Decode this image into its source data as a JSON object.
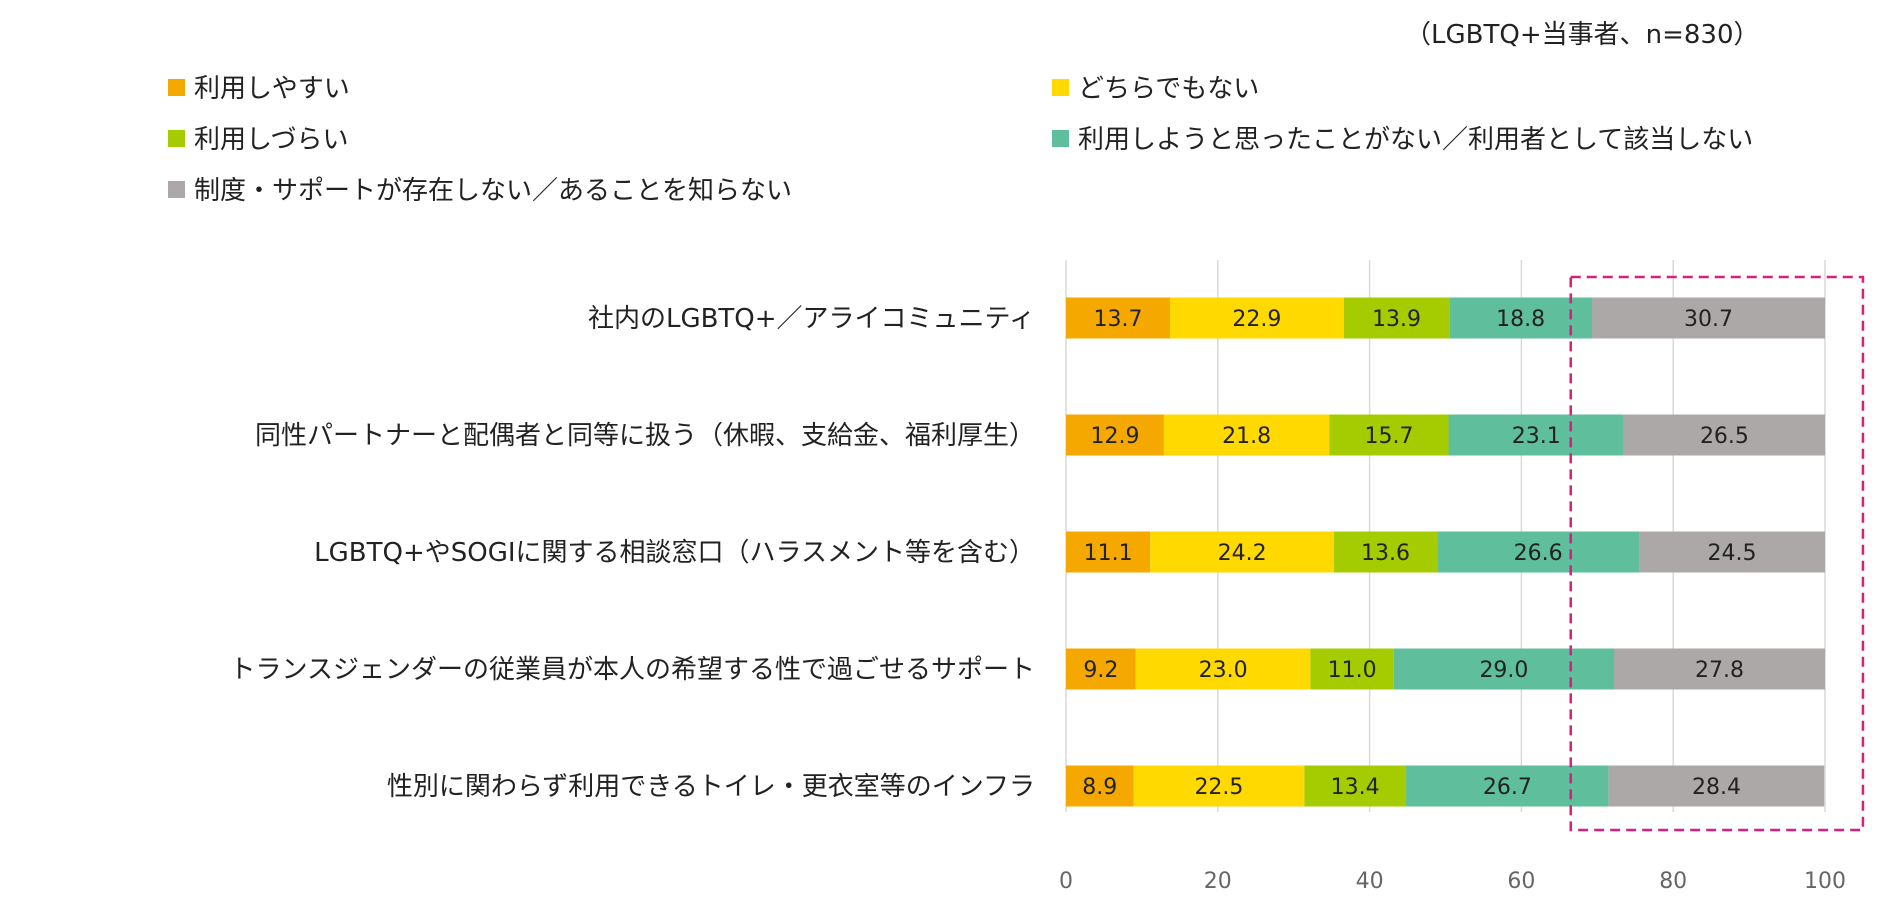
{
  "chart_data": {
    "type": "bar",
    "orientation": "horizontal-stacked",
    "note": "（LGBTQ+当事者、n=830）",
    "categories": [
      "社内のLGBTQ+／アライコミュニティ",
      "同性パートナーと配偶者と同等に扱う（休暇、支給金、福利厚生）",
      "LGBTQ+やSOGIに関する相談窓口（ハラスメント等を含む）",
      "トランスジェンダーの従業員が本人の希望する性で過ごせるサポート",
      "性別に関わらず利用できるトイレ・更衣室等のインフラ"
    ],
    "series": [
      {
        "name": "利用しやすい",
        "color": "#F5A800",
        "values": [
          13.7,
          12.9,
          11.1,
          9.2,
          8.9
        ]
      },
      {
        "name": "どちらでもない",
        "color": "#FFD900",
        "values": [
          22.9,
          21.8,
          24.2,
          23.0,
          22.5
        ]
      },
      {
        "name": "利用しづらい",
        "color": "#A5CC00",
        "values": [
          13.9,
          15.7,
          13.6,
          11.0,
          13.4
        ]
      },
      {
        "name": "利用しようと思ったことがない／利用者として該当しない",
        "color": "#5FBE9B",
        "values": [
          18.8,
          23.1,
          26.6,
          29.0,
          26.7
        ]
      },
      {
        "name": "制度・サポートが存在しない／あることを知らない",
        "color": "#ABA8A7",
        "values": [
          30.7,
          26.5,
          24.5,
          27.8,
          28.4
        ]
      }
    ],
    "value_labels": [
      [
        "13.7",
        "12.9",
        "11.1",
        "9.2",
        "8.9"
      ],
      [
        "22.9",
        "21.8",
        "24.2",
        "23.0",
        "22.5"
      ],
      [
        "13.9",
        "15.7",
        "13.6",
        "11.0",
        "13.4"
      ],
      [
        "18.8",
        "23.1",
        "26.6",
        "29.0",
        "26.7"
      ],
      [
        "30.7",
        "26.5",
        "24.5",
        "27.8",
        "28.4"
      ]
    ],
    "xlim": [
      0,
      100
    ],
    "xticks": [
      0,
      20,
      40,
      60,
      80,
      100
    ],
    "grid": true,
    "legend": "top",
    "highlight": {
      "x_from": 66.5,
      "x_to": 105,
      "color": "#D6207E",
      "style": "dashed"
    }
  }
}
